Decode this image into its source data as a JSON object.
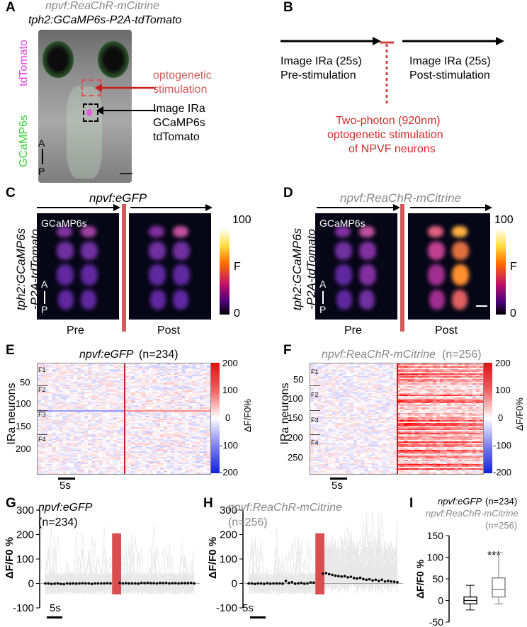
{
  "panels": {
    "A": "A",
    "B": "B",
    "C": "C",
    "D": "D",
    "E": "E",
    "F": "F",
    "G": "G",
    "H": "H",
    "I": "I"
  },
  "panelA": {
    "line1": "npvf:ReaChR-mCitrine",
    "line2": "tph2:GCaMP6s-P2A-tdTomato",
    "side_green": "GCaMP6s",
    "side_magenta": "tdTomato",
    "stim1": "optogenetic",
    "stim2": "stimulation",
    "img1": "Image IRa",
    "img2": "GCaMP6s",
    "img3": "tdTomato",
    "axis_a": "A",
    "axis_p": "P"
  },
  "panelB": {
    "pre1": "Image IRa (25s)",
    "pre2": "Pre-stimulation",
    "post1": "Image IRa (25s)",
    "post2": "Post-stimulation",
    "stim1": "Two-photon (920nm)",
    "stim2": "optogenetic stimulation",
    "stim3": "of NPVF neurons"
  },
  "panelC": {
    "title": "npvf:eGFP",
    "ylab1": "tph2:GCaMP6s",
    "ylab2": "-P2A-tdTomato",
    "img_label": "GCaMP6s",
    "pre": "Pre",
    "post": "Post",
    "cb_max": "100",
    "cb_mid": "F",
    "cb_min": "0",
    "axis_a": "A",
    "axis_p": "P"
  },
  "panelD": {
    "title": "npvf:ReaChR-mCitrine",
    "ylab1": "tph2:GCaMP6s",
    "ylab2": "-P2A-tdTomato",
    "img_label": "GCaMP6s",
    "pre": "Pre",
    "post": "Post",
    "cb_max": "100",
    "cb_mid": "F",
    "cb_min": "0",
    "axis_a": "A",
    "axis_p": "P"
  },
  "panelE": {
    "title": "npvf:eGFP",
    "n": "(n=234)",
    "ylabel": "IRa neurons",
    "yticks": [
      "50",
      "100",
      "150",
      "200"
    ],
    "groups": [
      "F1",
      "F2",
      "F3",
      "F4"
    ],
    "scale": "5s",
    "cb_ticks": [
      "200",
      "100",
      "0",
      "-100",
      "-200"
    ],
    "cb_label": "ΔF/F0%"
  },
  "panelF": {
    "title": "npvf:ReaChR-mCitrine",
    "n": "(n=256)",
    "ylabel": "IRa neurons",
    "yticks": [
      "50",
      "100",
      "150",
      "200",
      "250"
    ],
    "groups": [
      "F1",
      "F2",
      "F3",
      "F4"
    ],
    "scale": "5s",
    "cb_ticks": [
      "200",
      "100",
      "0",
      "-100",
      "-200"
    ],
    "cb_label": "ΔF/F0%"
  },
  "panelG": {
    "title": "npvf:eGFP",
    "n": "(n=234)",
    "scale": "5s"
  },
  "panelH": {
    "title": "npvf:ReaChR-mCitrine",
    "n": "(n=256)",
    "scale": "5s"
  },
  "panelI": {
    "title1": "npvf:eGFP",
    "n1": "(n=234)",
    "title2": "npvf:ReaChR-mCitrine",
    "n2": "(n=256)",
    "sig": "***"
  },
  "chart_data": [
    {
      "type": "line",
      "panel": "G",
      "ylabel": "ΔF/F0 %",
      "ylim": [
        -100,
        300
      ],
      "yticks": [
        -100,
        0,
        100,
        200,
        300
      ],
      "series": [
        {
          "values": [
            0,
            0,
            -2,
            -1,
            0,
            -2,
            -3,
            0,
            -1,
            0,
            -1,
            0,
            1,
            0,
            0,
            -2,
            0,
            0,
            0,
            0,
            1,
            0,
            0,
            0,
            2,
            0,
            1,
            0,
            0,
            0,
            -1,
            2,
            1,
            2,
            1,
            1,
            0,
            2,
            1,
            2,
            0,
            1,
            1,
            0,
            1,
            1,
            1,
            2,
            0
          ]
        }
      ],
      "stim_index": [
        22,
        24
      ]
    },
    {
      "type": "line",
      "panel": "H",
      "ylabel": "ΔF/F0 %",
      "ylim": [
        -100,
        300
      ],
      "yticks": [
        -100,
        0,
        100,
        200,
        300
      ],
      "series": [
        {
          "values": [
            0,
            0,
            -2,
            0,
            0,
            -2,
            1,
            -1,
            0,
            0,
            0,
            -1,
            10,
            2,
            5,
            -1,
            0,
            2,
            -1,
            0,
            4,
            3,
            4,
            0,
            40,
            42,
            38,
            35,
            32,
            30,
            28,
            30,
            25,
            27,
            22,
            20,
            23,
            18,
            15,
            17,
            12,
            15,
            10,
            15,
            8,
            10,
            8,
            7,
            5
          ]
        }
      ],
      "stim_index": [
        22,
        24
      ]
    },
    {
      "type": "box",
      "panel": "I",
      "ylabel": "ΔF/F0 %",
      "ylim": [
        -50,
        150
      ],
      "yticks": [
        -50,
        0,
        50,
        100,
        150
      ],
      "series": [
        {
          "name": "npvf:eGFP (n=234)",
          "whisker_low": -22,
          "q1": -8,
          "median": 0,
          "q3": 8,
          "whisker_high": 35
        },
        {
          "name": "npvf:ReaChR-mCitrine (n=256)",
          "whisker_low": -8,
          "q1": 8,
          "median": 25,
          "q3": 52,
          "whisker_high": 110
        }
      ]
    }
  ]
}
